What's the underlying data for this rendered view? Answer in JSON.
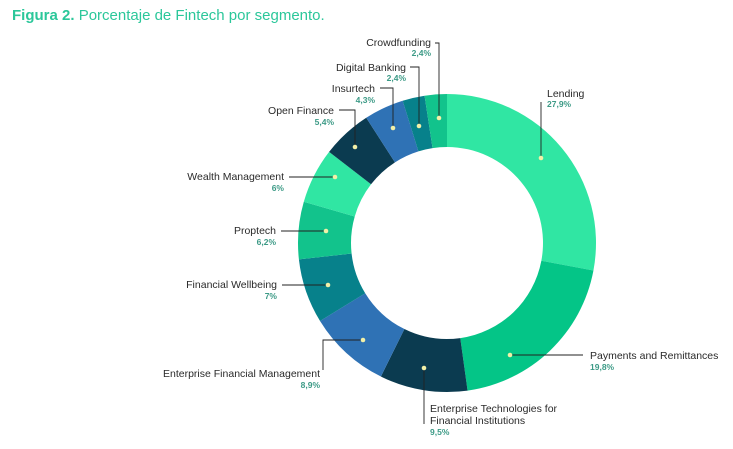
{
  "figure": {
    "label": "Figura 2",
    "separator": ".",
    "text": "Porcentaje de Fintech por segmento."
  },
  "chart_data": {
    "type": "pie",
    "donut": true,
    "title": "Figura 2. Porcentaje de Fintech por segmento.",
    "slices": [
      {
        "name": "Lending",
        "value": 27.9,
        "label": "27,9%",
        "color": "#30e6a3"
      },
      {
        "name": "Payments and Remittances",
        "value": 19.8,
        "label": "19,8%",
        "color": "#04c587"
      },
      {
        "name": "Enterprise Technologies for Financial Institutions",
        "lines": [
          "Enterprise Technologies for",
          "Financial Institutions"
        ],
        "value": 9.5,
        "label": "9,5%",
        "color": "#0b3b50"
      },
      {
        "name": "Enterprise Financial Management",
        "value": 8.9,
        "label": "8,9%",
        "color": "#2f72b5"
      },
      {
        "name": "Financial Wellbeing",
        "value": 7,
        "label": "7%",
        "color": "#07818b"
      },
      {
        "name": "Proptech",
        "value": 6.2,
        "label": "6,2%",
        "color": "#12c38c"
      },
      {
        "name": "Wealth Management",
        "value": 6,
        "label": "6%",
        "color": "#30e6a3"
      },
      {
        "name": "Open Finance",
        "value": 5.4,
        "label": "5,4%",
        "color": "#0b3b50"
      },
      {
        "name": "Insurtech",
        "value": 4.3,
        "label": "4,3%",
        "color": "#2f72b5"
      },
      {
        "name": "Digital Banking",
        "value": 2.4,
        "label": "2,4%",
        "color": "#07818b"
      },
      {
        "name": "Crowdfunding",
        "value": 2.4,
        "label": "2,4%",
        "color": "#12c38c"
      }
    ]
  }
}
